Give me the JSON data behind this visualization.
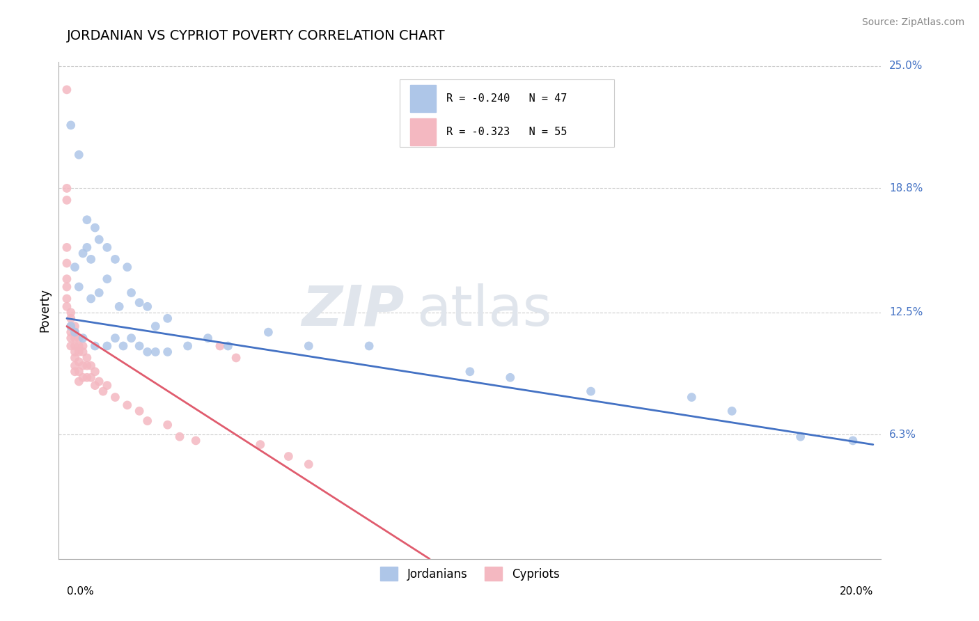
{
  "title": "JORDANIAN VS CYPRIOT POVERTY CORRELATION CHART",
  "source_text": "Source: ZipAtlas.com",
  "ylabel": "Poverty",
  "xmin": 0.0,
  "xmax": 0.2,
  "ymin": 0.0,
  "ymax": 0.25,
  "yticks": [
    0.063,
    0.125,
    0.188,
    0.25
  ],
  "ytick_labels": [
    "6.3%",
    "12.5%",
    "18.8%",
    "25.0%"
  ],
  "legend_entries": [
    {
      "label": "R = -0.240   N = 47",
      "color": "#aec6e8"
    },
    {
      "label": "R = -0.323   N = 55",
      "color": "#f4b8c1"
    }
  ],
  "legend_bottom_labels": [
    "Jordanians",
    "Cypriots"
  ],
  "jordanian_color": "#aec6e8",
  "cypriot_color": "#f4b8c1",
  "trendline_jordanian_color": "#4472c4",
  "trendline_cypriot_color": "#e05c6e",
  "watermark_zip": "ZIP",
  "watermark_atlas": "atlas",
  "trendline_j_x0": 0.0,
  "trendline_j_y0": 0.122,
  "trendline_j_x1": 0.2,
  "trendline_j_y1": 0.058,
  "trendline_c_x0": 0.0,
  "trendline_c_y0": 0.118,
  "trendline_c_x1": 0.09,
  "trendline_c_y1": 0.0,
  "jordanian_points": [
    [
      0.001,
      0.22
    ],
    [
      0.003,
      0.205
    ],
    [
      0.005,
      0.172
    ],
    [
      0.007,
      0.168
    ],
    [
      0.002,
      0.148
    ],
    [
      0.004,
      0.155
    ],
    [
      0.006,
      0.152
    ],
    [
      0.005,
      0.158
    ],
    [
      0.008,
      0.162
    ],
    [
      0.01,
      0.158
    ],
    [
      0.003,
      0.138
    ],
    [
      0.006,
      0.132
    ],
    [
      0.008,
      0.135
    ],
    [
      0.01,
      0.142
    ],
    [
      0.012,
      0.152
    ],
    [
      0.015,
      0.148
    ],
    [
      0.013,
      0.128
    ],
    [
      0.016,
      0.135
    ],
    [
      0.018,
      0.13
    ],
    [
      0.02,
      0.128
    ],
    [
      0.022,
      0.118
    ],
    [
      0.025,
      0.122
    ],
    [
      0.001,
      0.118
    ],
    [
      0.002,
      0.115
    ],
    [
      0.004,
      0.112
    ],
    [
      0.007,
      0.108
    ],
    [
      0.01,
      0.108
    ],
    [
      0.012,
      0.112
    ],
    [
      0.014,
      0.108
    ],
    [
      0.016,
      0.112
    ],
    [
      0.018,
      0.108
    ],
    [
      0.02,
      0.105
    ],
    [
      0.022,
      0.105
    ],
    [
      0.025,
      0.105
    ],
    [
      0.03,
      0.108
    ],
    [
      0.035,
      0.112
    ],
    [
      0.04,
      0.108
    ],
    [
      0.05,
      0.115
    ],
    [
      0.06,
      0.108
    ],
    [
      0.075,
      0.108
    ],
    [
      0.1,
      0.095
    ],
    [
      0.11,
      0.092
    ],
    [
      0.13,
      0.085
    ],
    [
      0.155,
      0.082
    ],
    [
      0.165,
      0.075
    ],
    [
      0.182,
      0.062
    ],
    [
      0.195,
      0.06
    ]
  ],
  "cypriot_points": [
    [
      0.0,
      0.238
    ],
    [
      0.0,
      0.188
    ],
    [
      0.0,
      0.182
    ],
    [
      0.0,
      0.158
    ],
    [
      0.0,
      0.15
    ],
    [
      0.0,
      0.142
    ],
    [
      0.0,
      0.138
    ],
    [
      0.0,
      0.132
    ],
    [
      0.0,
      0.128
    ],
    [
      0.001,
      0.125
    ],
    [
      0.001,
      0.122
    ],
    [
      0.001,
      0.118
    ],
    [
      0.001,
      0.115
    ],
    [
      0.001,
      0.112
    ],
    [
      0.001,
      0.108
    ],
    [
      0.002,
      0.118
    ],
    [
      0.002,
      0.115
    ],
    [
      0.002,
      0.112
    ],
    [
      0.002,
      0.108
    ],
    [
      0.002,
      0.105
    ],
    [
      0.002,
      0.102
    ],
    [
      0.002,
      0.098
    ],
    [
      0.002,
      0.095
    ],
    [
      0.003,
      0.112
    ],
    [
      0.003,
      0.108
    ],
    [
      0.003,
      0.105
    ],
    [
      0.003,
      0.1
    ],
    [
      0.003,
      0.095
    ],
    [
      0.003,
      0.09
    ],
    [
      0.004,
      0.108
    ],
    [
      0.004,
      0.105
    ],
    [
      0.004,
      0.098
    ],
    [
      0.004,
      0.092
    ],
    [
      0.005,
      0.102
    ],
    [
      0.005,
      0.098
    ],
    [
      0.005,
      0.092
    ],
    [
      0.006,
      0.098
    ],
    [
      0.006,
      0.092
    ],
    [
      0.007,
      0.095
    ],
    [
      0.007,
      0.088
    ],
    [
      0.008,
      0.09
    ],
    [
      0.009,
      0.085
    ],
    [
      0.01,
      0.088
    ],
    [
      0.012,
      0.082
    ],
    [
      0.015,
      0.078
    ],
    [
      0.018,
      0.075
    ],
    [
      0.02,
      0.07
    ],
    [
      0.025,
      0.068
    ],
    [
      0.028,
      0.062
    ],
    [
      0.032,
      0.06
    ],
    [
      0.038,
      0.108
    ],
    [
      0.042,
      0.102
    ],
    [
      0.048,
      0.058
    ],
    [
      0.055,
      0.052
    ],
    [
      0.06,
      0.048
    ]
  ]
}
